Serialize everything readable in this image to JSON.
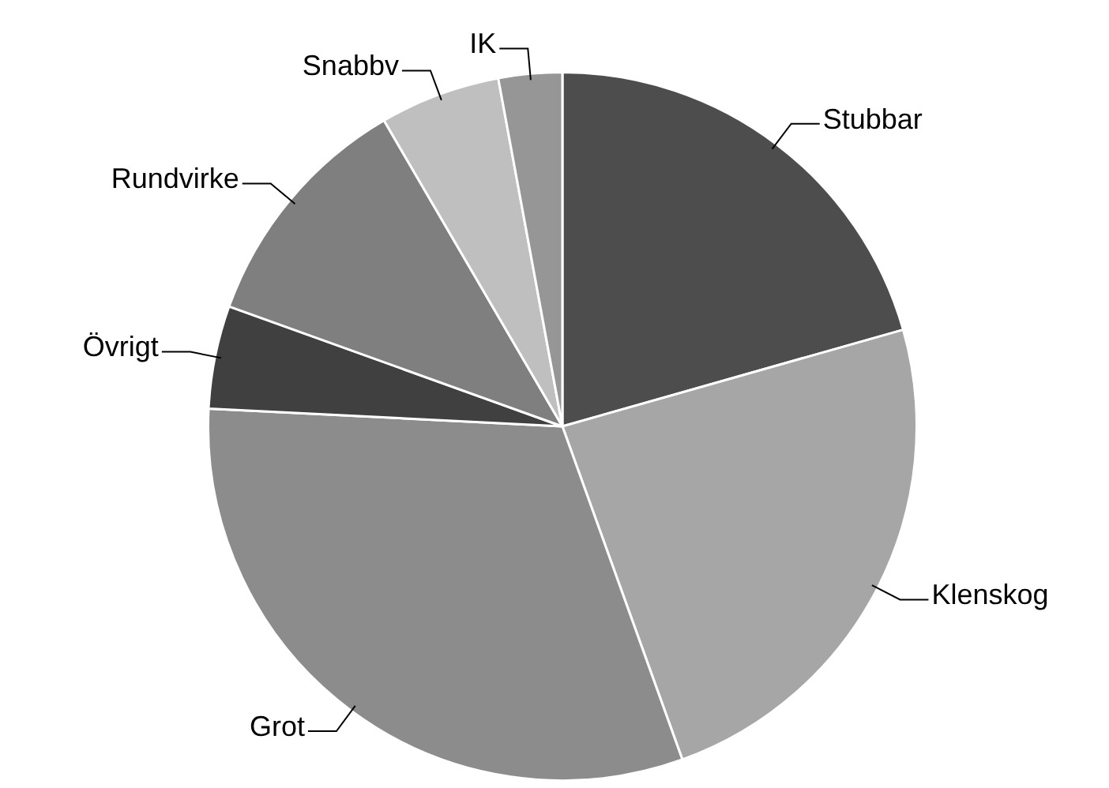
{
  "chart_data": {
    "type": "pie",
    "categories": [
      "Stubbar",
      "Klenskog",
      "Grot",
      "Övrigt",
      "Rundvirke",
      "Snabbv",
      "IK"
    ],
    "values": [
      20.6,
      23.9,
      31.3,
      4.7,
      11.1,
      5.5,
      2.9
    ],
    "colors": [
      "#4d4d4d",
      "#a6a6a6",
      "#8c8c8c",
      "#404040",
      "#7f7f7f",
      "#bfbfbf",
      "#969696"
    ],
    "legend": false
  }
}
